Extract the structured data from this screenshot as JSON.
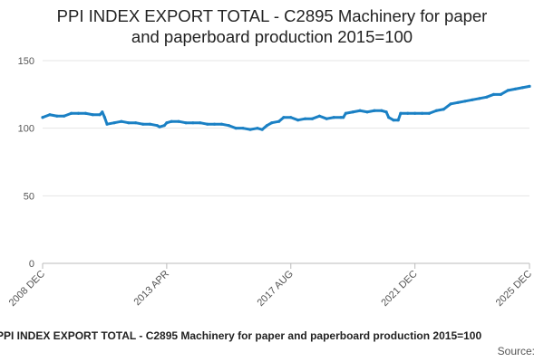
{
  "chart_data": {
    "type": "line",
    "title": [
      "PPI INDEX EXPORT TOTAL - C2895 Machinery for paper",
      "and paperboard production 2015=100"
    ],
    "xlabel": "",
    "ylabel": "",
    "ylim": [
      0,
      150
    ],
    "yticks": [
      0,
      50,
      100,
      150
    ],
    "xlim": [
      "2008-12",
      "2025-12"
    ],
    "xticks": [
      {
        "label": "2008 DEC",
        "date": "2008-12"
      },
      {
        "label": "2013 APR",
        "date": "2013-04"
      },
      {
        "label": "2017 AUG",
        "date": "2017-08"
      },
      {
        "label": "2021 DEC",
        "date": "2021-12"
      },
      {
        "label": "2025 DEC",
        "date": "2025-12"
      }
    ],
    "grid": true,
    "series": [
      {
        "color": "#1a80c4",
        "points": [
          [
            "2008-12",
            108
          ],
          [
            "2009-03",
            110
          ],
          [
            "2009-06",
            109
          ],
          [
            "2009-09",
            109
          ],
          [
            "2009-12",
            111
          ],
          [
            "2010-03",
            111
          ],
          [
            "2010-06",
            111
          ],
          [
            "2010-09",
            110
          ],
          [
            "2010-12",
            110
          ],
          [
            "2011-01",
            112
          ],
          [
            "2011-02",
            108
          ],
          [
            "2011-03",
            103
          ],
          [
            "2011-06",
            104
          ],
          [
            "2011-09",
            105
          ],
          [
            "2011-12",
            104
          ],
          [
            "2012-03",
            104
          ],
          [
            "2012-06",
            103
          ],
          [
            "2012-09",
            103
          ],
          [
            "2012-12",
            102
          ],
          [
            "2013-01",
            101
          ],
          [
            "2013-03",
            102
          ],
          [
            "2013-04",
            104
          ],
          [
            "2013-06",
            105
          ],
          [
            "2013-09",
            105
          ],
          [
            "2013-12",
            104
          ],
          [
            "2014-03",
            104
          ],
          [
            "2014-06",
            104
          ],
          [
            "2014-09",
            103
          ],
          [
            "2014-12",
            103
          ],
          [
            "2015-03",
            103
          ],
          [
            "2015-06",
            102
          ],
          [
            "2015-09",
            100
          ],
          [
            "2015-12",
            100
          ],
          [
            "2016-03",
            99
          ],
          [
            "2016-06",
            100
          ],
          [
            "2016-08",
            99
          ],
          [
            "2016-10",
            102
          ],
          [
            "2016-12",
            104
          ],
          [
            "2017-03",
            105
          ],
          [
            "2017-05",
            108
          ],
          [
            "2017-08",
            108
          ],
          [
            "2017-11",
            106
          ],
          [
            "2018-02",
            107
          ],
          [
            "2018-05",
            107
          ],
          [
            "2018-08",
            109
          ],
          [
            "2018-11",
            107
          ],
          [
            "2019-02",
            108
          ],
          [
            "2019-05",
            108
          ],
          [
            "2019-06",
            108
          ],
          [
            "2019-07",
            111
          ],
          [
            "2019-10",
            112
          ],
          [
            "2020-01",
            113
          ],
          [
            "2020-04",
            112
          ],
          [
            "2020-07",
            113
          ],
          [
            "2020-10",
            113
          ],
          [
            "2020-12",
            112
          ],
          [
            "2021-01",
            108
          ],
          [
            "2021-03",
            106
          ],
          [
            "2021-05",
            106
          ],
          [
            "2021-06",
            111
          ],
          [
            "2021-09",
            111
          ],
          [
            "2021-12",
            111
          ],
          [
            "2022-03",
            111
          ],
          [
            "2022-06",
            111
          ],
          [
            "2022-09",
            113
          ],
          [
            "2022-12",
            114
          ],
          [
            "2023-03",
            118
          ],
          [
            "2023-06",
            119
          ],
          [
            "2023-09",
            120
          ],
          [
            "2023-12",
            121
          ],
          [
            "2024-03",
            122
          ],
          [
            "2024-06",
            123
          ],
          [
            "2024-09",
            125
          ],
          [
            "2024-12",
            125
          ],
          [
            "2025-03",
            128
          ],
          [
            "2025-06",
            129
          ],
          [
            "2025-09",
            130
          ],
          [
            "2025-12",
            131
          ]
        ]
      }
    ]
  },
  "footer": {
    "title": "PPI INDEX EXPORT TOTAL - C2895 Machinery for paper and paperboard production 2015=100",
    "source": "Source:"
  }
}
